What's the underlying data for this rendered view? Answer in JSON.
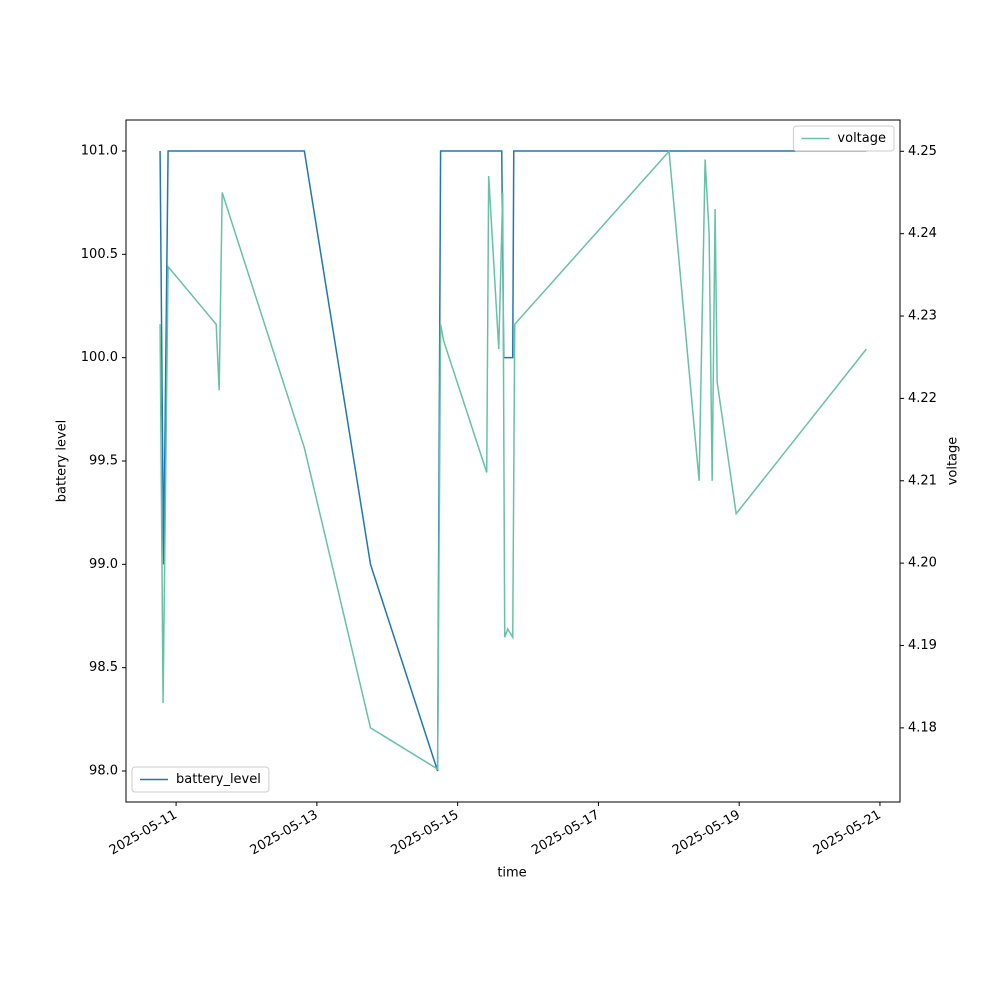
{
  "chart_data": {
    "type": "line",
    "x_label": "time",
    "y_label": "battery level",
    "y2_label": "voltage",
    "xlim": [
      "2025-05-10T06:55",
      "2025-05-21T06:50"
    ],
    "xticks": [
      "2025-05-11",
      "2025-05-13",
      "2025-05-15",
      "2025-05-17",
      "2025-05-19",
      "2025-05-21"
    ],
    "ylim": [
      97.85,
      101.15
    ],
    "yticks": [
      {
        "value": 98,
        "label": "98.0"
      },
      98.5,
      {
        "value": 99,
        "label": "99.0"
      },
      99.5,
      {
        "value": 100,
        "label": "100.0"
      },
      100.5,
      {
        "value": 101,
        "label": "101.0"
      }
    ],
    "y2lim": [
      4.171,
      4.2538
    ],
    "y2ticks": [
      4.18,
      4.19,
      {
        "value": 4.2,
        "label": "4.20"
      },
      4.21,
      4.22,
      4.23,
      4.24,
      4.25
    ],
    "series": [
      {
        "name": "battery_level",
        "color": "#1f77b4",
        "axis": "y",
        "legend_loc": "lower left",
        "x": [
          "2025-05-10T18:32",
          "2025-05-10T19:44",
          "2025-05-10T21:16",
          "2025-05-12T19:44",
          "2025-05-13T18:17",
          "2025-05-14T17:10",
          "2025-05-14T18:11",
          "2025-05-15T15:02",
          "2025-05-15T15:43",
          "2025-05-15T18:47",
          "2025-05-15T19:08",
          "2025-05-20T19:23"
        ],
        "values": [
          101,
          99,
          101,
          101,
          99,
          98,
          101,
          101,
          100,
          100,
          101,
          101
        ]
      },
      {
        "name": "voltage",
        "color": "#66c2a5",
        "axis": "y2",
        "legend_loc": "upper right",
        "x": [
          "2025-05-10T18:32",
          "2025-05-10T19:33",
          "2025-05-10T21:16",
          "2025-05-11T13:40",
          "2025-05-11T14:41",
          "2025-05-11T15:43",
          "2025-05-12T19:44",
          "2025-05-13T18:17",
          "2025-05-14T17:10",
          "2025-05-14T18:11",
          "2025-05-14T19:13",
          "2025-05-15T09:55",
          "2025-05-15T10:35",
          "2025-05-15T14:01",
          "2025-05-15T15:22",
          "2025-05-15T16:03",
          "2025-05-15T17:05",
          "2025-05-15T18:47",
          "2025-05-15T19:28",
          "2025-05-18T00:05",
          "2025-05-18T10:20",
          "2025-05-18T12:23",
          "2025-05-18T13:45",
          "2025-05-18T14:47",
          "2025-05-18T15:47",
          "2025-05-18T16:29",
          "2025-05-18T22:58",
          "2025-05-20T19:23"
        ],
        "values": [
          4.229,
          4.183,
          4.236,
          4.229,
          4.221,
          4.245,
          4.214,
          4.18,
          4.175,
          4.229,
          4.227,
          4.211,
          4.247,
          4.226,
          4.245,
          4.191,
          4.192,
          4.191,
          4.229,
          4.25,
          4.21,
          4.249,
          4.24,
          4.21,
          4.243,
          4.222,
          4.206,
          4.226
        ]
      }
    ]
  }
}
